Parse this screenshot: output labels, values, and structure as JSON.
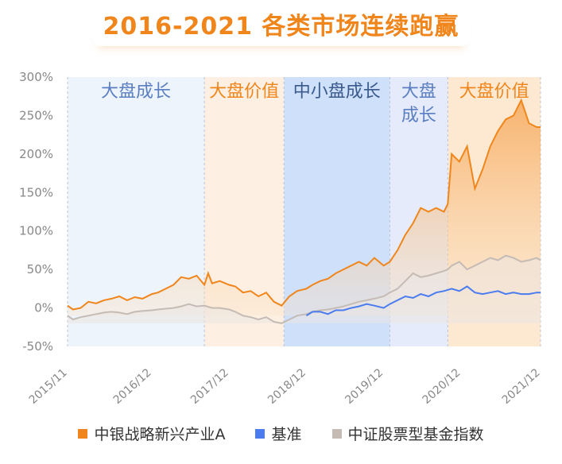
{
  "title": "2016-2021 各类市场连续跑赢",
  "chart_data": {
    "type": "area",
    "title": "2016-2021 各类市场连续跑赢",
    "xlabel": "",
    "ylabel": "",
    "ylim": [
      -50,
      300
    ],
    "y_ticks": [
      "300%",
      "250%",
      "200%",
      "150%",
      "100%",
      "50%",
      "0%",
      "-50%"
    ],
    "y_tick_values": [
      300,
      250,
      200,
      150,
      100,
      50,
      0,
      -50
    ],
    "x_range": [
      2015.83,
      2021.95
    ],
    "x_ticks": [
      "2015/11",
      "2016/12",
      "2017/12",
      "2018/12",
      "2019/12",
      "2020/12",
      "2021/12"
    ],
    "x_tick_values": [
      2015.83,
      2016.92,
      2017.92,
      2018.92,
      2019.92,
      2020.92,
      2021.95
    ],
    "regimes": [
      {
        "label": "大盘成长",
        "x0": 2015.83,
        "x1": 2017.6,
        "color": "#eef4fb",
        "label_color": "#5b7fc2"
      },
      {
        "label": "大盘价值",
        "x0": 2017.6,
        "x1": 2018.63,
        "color": "#fdf0e3",
        "label_color": "#f0861b"
      },
      {
        "label": "中小盘成长",
        "x0": 2018.63,
        "x1": 2020.0,
        "color": "#cfe0fb",
        "label_color": "#3a5a8c"
      },
      {
        "label": "大盘\n成长",
        "x0": 2020.0,
        "x1": 2020.75,
        "color": "#e5ebfb",
        "label_color": "#5b7fc2"
      },
      {
        "label": "大盘价值",
        "x0": 2020.75,
        "x1": 2021.95,
        "color": "#fde9d2",
        "label_color": "#f0861b"
      }
    ],
    "series": [
      {
        "name": "中银战略新兴产业A",
        "color": "#f0861b",
        "x": [
          2015.83,
          2015.9,
          2016.0,
          2016.1,
          2016.2,
          2016.3,
          2016.4,
          2016.5,
          2016.6,
          2016.7,
          2016.8,
          2016.92,
          2017.0,
          2017.1,
          2017.2,
          2017.3,
          2017.4,
          2017.5,
          2017.6,
          2017.65,
          2017.7,
          2017.8,
          2017.92,
          2018.0,
          2018.1,
          2018.2,
          2018.3,
          2018.4,
          2018.5,
          2018.6,
          2018.7,
          2018.8,
          2018.92,
          2019.0,
          2019.1,
          2019.2,
          2019.3,
          2019.4,
          2019.5,
          2019.6,
          2019.7,
          2019.8,
          2019.92,
          2020.0,
          2020.1,
          2020.2,
          2020.3,
          2020.4,
          2020.5,
          2020.6,
          2020.7,
          2020.75,
          2020.8,
          2020.9,
          2021.0,
          2021.1,
          2021.2,
          2021.3,
          2021.4,
          2021.5,
          2021.6,
          2021.7,
          2021.8,
          2021.9,
          2021.95
        ],
        "values": [
          3,
          -2,
          0,
          8,
          6,
          10,
          12,
          15,
          10,
          14,
          12,
          18,
          20,
          25,
          30,
          40,
          38,
          42,
          30,
          45,
          32,
          35,
          30,
          28,
          20,
          22,
          15,
          20,
          8,
          3,
          15,
          22,
          25,
          30,
          35,
          38,
          45,
          50,
          55,
          60,
          55,
          65,
          55,
          60,
          75,
          95,
          110,
          130,
          125,
          130,
          125,
          135,
          200,
          190,
          210,
          155,
          180,
          210,
          230,
          245,
          250,
          270,
          240,
          235,
          235
        ]
      },
      {
        "name": "基准",
        "color": "#4a7cf0",
        "x": [
          2018.92,
          2019.0,
          2019.1,
          2019.2,
          2019.3,
          2019.4,
          2019.5,
          2019.6,
          2019.7,
          2019.8,
          2019.92,
          2020.0,
          2020.1,
          2020.2,
          2020.3,
          2020.4,
          2020.5,
          2020.6,
          2020.7,
          2020.8,
          2020.9,
          2021.0,
          2021.1,
          2021.2,
          2021.3,
          2021.4,
          2021.5,
          2021.6,
          2021.7,
          2021.8,
          2021.9,
          2021.95
        ],
        "values": [
          -10,
          -5,
          -5,
          -8,
          -3,
          -3,
          0,
          2,
          5,
          3,
          0,
          5,
          10,
          15,
          13,
          18,
          15,
          20,
          22,
          25,
          22,
          28,
          20,
          18,
          20,
          22,
          18,
          20,
          18,
          18,
          20,
          20
        ]
      },
      {
        "name": "中证股票型基金指数",
        "color": "#c5bbb5",
        "x": [
          2015.83,
          2015.9,
          2016.0,
          2016.1,
          2016.2,
          2016.3,
          2016.4,
          2016.5,
          2016.6,
          2016.7,
          2016.8,
          2016.92,
          2017.0,
          2017.1,
          2017.2,
          2017.3,
          2017.4,
          2017.5,
          2017.6,
          2017.7,
          2017.8,
          2017.92,
          2018.0,
          2018.1,
          2018.2,
          2018.3,
          2018.4,
          2018.5,
          2018.6,
          2018.7,
          2018.8,
          2018.92,
          2019.0,
          2019.1,
          2019.2,
          2019.3,
          2019.4,
          2019.5,
          2019.6,
          2019.7,
          2019.8,
          2019.92,
          2020.0,
          2020.1,
          2020.2,
          2020.3,
          2020.4,
          2020.5,
          2020.6,
          2020.7,
          2020.75,
          2020.8,
          2020.9,
          2021.0,
          2021.1,
          2021.2,
          2021.3,
          2021.4,
          2021.5,
          2021.6,
          2021.7,
          2021.8,
          2021.9,
          2021.95
        ],
        "values": [
          -10,
          -15,
          -12,
          -10,
          -8,
          -6,
          -5,
          -6,
          -8,
          -5,
          -4,
          -3,
          -2,
          -1,
          0,
          2,
          5,
          2,
          3,
          0,
          0,
          -2,
          -5,
          -10,
          -12,
          -15,
          -12,
          -18,
          -20,
          -15,
          -10,
          -8,
          -5,
          -3,
          -2,
          0,
          2,
          5,
          8,
          10,
          12,
          15,
          20,
          25,
          35,
          45,
          40,
          42,
          45,
          48,
          50,
          55,
          60,
          50,
          55,
          60,
          65,
          62,
          68,
          65,
          60,
          62,
          65,
          62
        ]
      }
    ],
    "legend_position": "bottom"
  }
}
